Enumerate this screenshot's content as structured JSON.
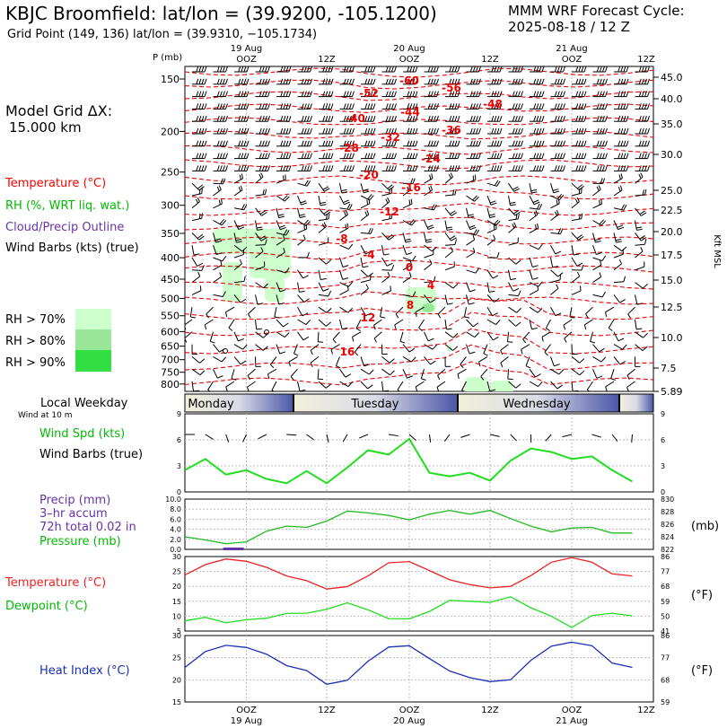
{
  "header": {
    "title": "KBJC Broomfield:  lat/lon = (39.9200, -105.1200)",
    "subtitle": "Grid Point (149, 136) lat/lon = (39.9310, −105.1734)",
    "cycle_title": "MMM WRF Forecast Cycle:",
    "cycle_time": "2025-08-18 / 12  Z"
  },
  "left_panel": {
    "grid_label": "Model Grid ΔX:",
    "grid_value": "15.000 km",
    "legend_temperature": "Temperature (°C)",
    "legend_rh": "RH (%, WRT liq. wat.)",
    "legend_cloud": "Cloud/Precip Outline",
    "legend_wind": "Wind Barbs (kts) (true)",
    "rh_70": "RH > 70%",
    "rh_80": "RH > 80%",
    "rh_90": "RH > 90%",
    "colors": {
      "rh70": "#ccffcc",
      "rh80": "#99e699",
      "rh90": "#33dd44",
      "temperature": "#ff0000",
      "rh": "#00cc00",
      "cloud": "#6633aa"
    }
  },
  "time_axis": {
    "top_dates": [
      "19 Aug",
      "20 Aug",
      "21 Aug"
    ],
    "hour_labels": [
      "OOZ",
      "12Z",
      "OOZ",
      "12Z",
      "OOZ",
      "12Z"
    ],
    "bottom_hours": [
      "OOZ",
      "12Z",
      "OOZ",
      "12Z",
      "OOZ",
      "12Z"
    ],
    "bottom_dates": [
      "19 Aug",
      "20 Aug",
      "21 Aug"
    ],
    "weekday_title": "Local Weekday",
    "weekday_sub": "Wind at 10 m",
    "weekdays": [
      "Monday",
      "Tuesday",
      "Wednesday"
    ]
  },
  "chart_data": [
    {
      "type": "cross-section",
      "y_axis_label": "P (mb)",
      "pressure_levels": [
        150,
        200,
        250,
        300,
        350,
        400,
        450,
        500,
        550,
        600,
        650,
        700,
        750,
        800
      ],
      "right_label": "Kft MSL",
      "height_kft": [
        "45.0",
        "40.0",
        "35.0",
        "30.0",
        "25.0",
        "22.5",
        "20.0",
        "17.5",
        "15.0",
        "12.5",
        "10.0",
        "7.5",
        "5.89"
      ],
      "temperature_labels": [
        "-60",
        "-56",
        "-52",
        "-48",
        "-44",
        "-40",
        "-36",
        "-32",
        "-28",
        "-24",
        "-20",
        "-16",
        "-12",
        "-8",
        "-4",
        "0",
        "4",
        "8",
        "12",
        "16"
      ],
      "series": [
        {
          "name": "Temperature (°C)",
          "kind": "dashed contour",
          "color": "#ff0000"
        },
        {
          "name": "RH (%, WRT liq. wat.)",
          "kind": "filled contour"
        },
        {
          "name": "Wind Barbs (kts) (true)",
          "kind": "wind barbs"
        }
      ]
    },
    {
      "type": "line",
      "legend": [
        "Wind Spd (kts)",
        "Wind Barbs (true)"
      ],
      "y_ticks": [
        "0",
        "3",
        "6",
        "9"
      ],
      "ylim": [
        0,
        9
      ],
      "x_hours": [
        -9,
        -6,
        -3,
        0,
        3,
        6,
        9,
        12,
        15,
        18,
        21,
        24,
        27,
        30,
        33,
        36,
        39,
        42,
        45,
        48,
        51,
        54,
        57
      ],
      "series": [
        {
          "name": "Wind Spd (kts)",
          "color": "#22dd22",
          "values": [
            2.5,
            3.8,
            2.0,
            2.5,
            1.5,
            1.0,
            2.4,
            1.0,
            2.8,
            4.8,
            4.3,
            6.1,
            2.2,
            1.8,
            2.2,
            1.3,
            3.6,
            5.0,
            4.6,
            3.8,
            4.1,
            2.5,
            1.2
          ]
        }
      ]
    },
    {
      "type": "line",
      "legend": [
        "Precip (mm)",
        "3–hr accum",
        "72h total 0.02 in",
        "Pressure (mb)"
      ],
      "y_ticks_left": [
        "0.0",
        "2.0",
        "4.0",
        "6.0",
        "8.0",
        "10.0"
      ],
      "y_ticks_right": [
        "822",
        "824",
        "826",
        "828",
        "830"
      ],
      "unit_right": "(mb)",
      "x_hours": [
        -9,
        -6,
        -3,
        0,
        3,
        6,
        9,
        12,
        15,
        18,
        21,
        24,
        27,
        30,
        33,
        36,
        39,
        42,
        45,
        48,
        51,
        54,
        57
      ],
      "series": [
        {
          "name": "Pressure (mb)",
          "color": "#22bb22",
          "values": [
            824.0,
            823.5,
            822.9,
            823.2,
            824.9,
            825.7,
            825.5,
            826.5,
            828.1,
            827.8,
            827.4,
            826.7,
            827.6,
            828.2,
            827.6,
            828.2,
            826.9,
            825.7,
            824.8,
            825.4,
            825.5,
            824.6,
            824.6
          ]
        },
        {
          "name": "Precip (mm)",
          "color": "#6633aa",
          "values": [
            0,
            0,
            0.1,
            0.1,
            0,
            0,
            0,
            0,
            0,
            0,
            0,
            0,
            0,
            0,
            0,
            0,
            0,
            0,
            0,
            0,
            0,
            0,
            0
          ]
        }
      ]
    },
    {
      "type": "line",
      "legend": [
        "Temperature (°C)",
        "Dewpoint (°C)"
      ],
      "y_ticks_left": [
        "5",
        "10",
        "15",
        "20",
        "25",
        "30"
      ],
      "y_ticks_right": [
        "41",
        "50",
        "59",
        "68",
        "77",
        "86"
      ],
      "unit_right": "(°F)",
      "x_hours": [
        -9,
        -6,
        -3,
        0,
        3,
        6,
        9,
        12,
        15,
        18,
        21,
        24,
        27,
        30,
        33,
        36,
        39,
        42,
        45,
        48,
        51,
        54,
        57
      ],
      "series": [
        {
          "name": "Temperature (°C)",
          "color": "#ee2222",
          "values": [
            23.8,
            27.3,
            29.2,
            28.4,
            26.4,
            23.5,
            21.9,
            19.1,
            19.9,
            23.5,
            27.9,
            28.3,
            25.3,
            22.2,
            20.6,
            19.5,
            20.0,
            23.6,
            28.1,
            29.6,
            28.1,
            24.2,
            23.5
          ]
        },
        {
          "name": "Dewpoint (°C)",
          "color": "#22dd22",
          "values": [
            8.4,
            9.6,
            7.8,
            8.8,
            9.3,
            10.9,
            11.0,
            12.3,
            14.5,
            12.1,
            9.2,
            9.1,
            11.6,
            15.3,
            15.0,
            14.6,
            16.5,
            12.8,
            10.0,
            6.2,
            10.2,
            11.0,
            10.1
          ]
        }
      ]
    },
    {
      "type": "line",
      "legend": [
        "Heat Index (°C)"
      ],
      "y_ticks_left": [
        "15",
        "20",
        "25",
        "30"
      ],
      "y_ticks_right": [
        "59",
        "68",
        "77",
        "86"
      ],
      "unit_right": "(°F)",
      "x_hours": [
        -9,
        -6,
        -3,
        0,
        3,
        6,
        9,
        12,
        15,
        18,
        21,
        24,
        27,
        30,
        33,
        36,
        39,
        42,
        45,
        48,
        51,
        54,
        57
      ],
      "series": [
        {
          "name": "Heat Index (°C)",
          "color": "#1a2fb8",
          "values": [
            22.8,
            26.4,
            27.8,
            27.3,
            25.8,
            23.2,
            22.1,
            19.0,
            19.9,
            24.2,
            27.4,
            27.7,
            24.8,
            22.0,
            20.5,
            19.6,
            20.0,
            24.4,
            27.6,
            28.5,
            27.7,
            23.8,
            22.8
          ]
        }
      ]
    }
  ]
}
